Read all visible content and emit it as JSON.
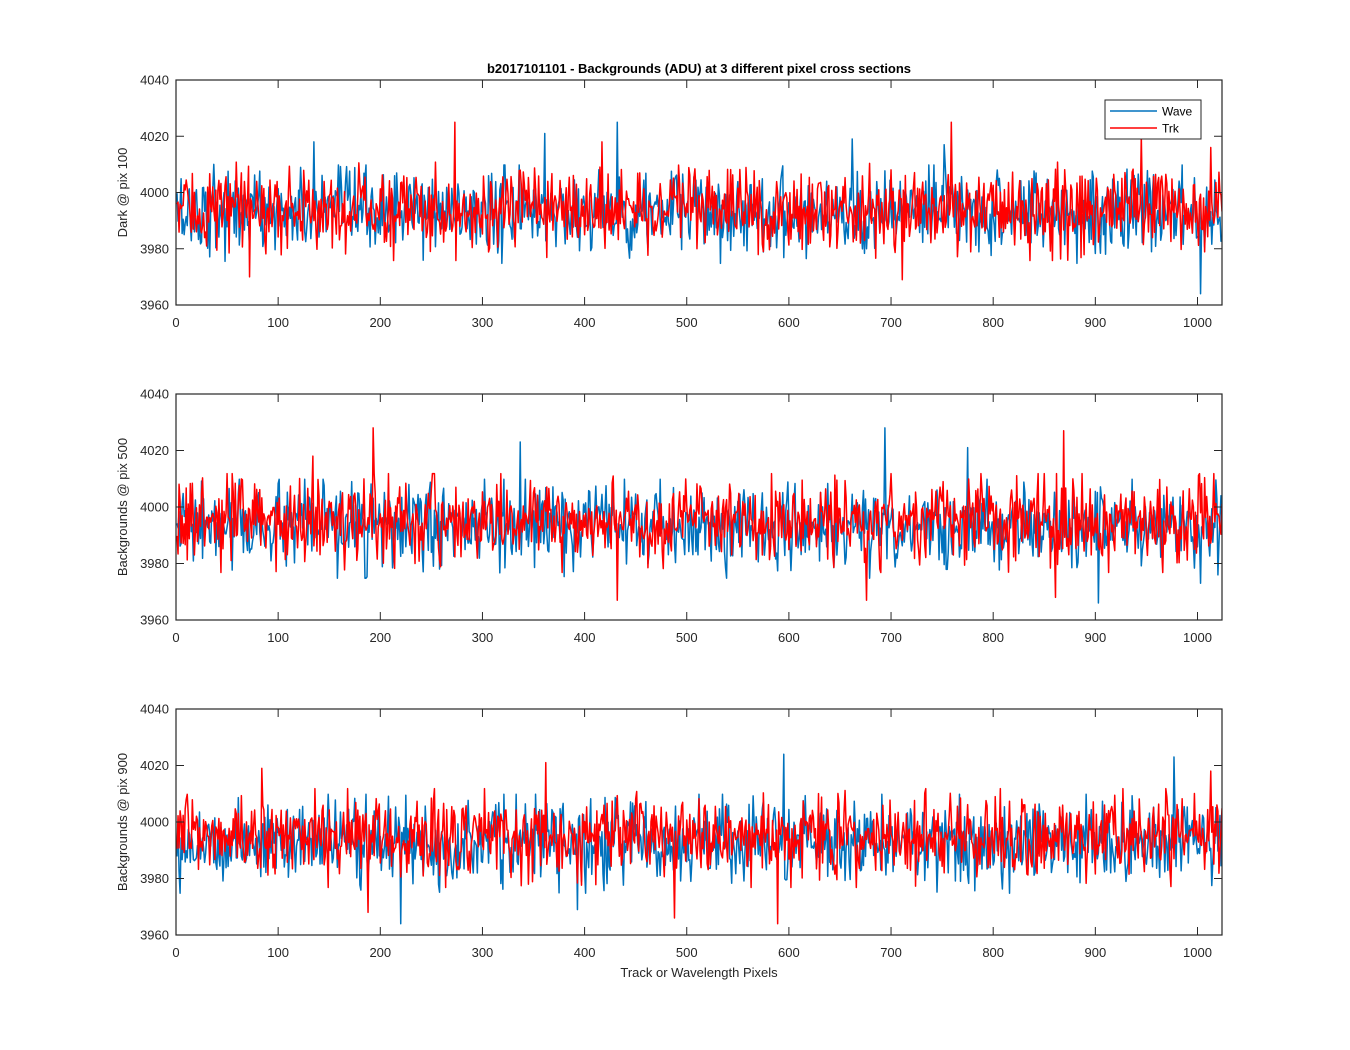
{
  "figure": {
    "title": "b2017101101 - Backgrounds (ADU) at 3 different pixel cross sections",
    "xlabel": "Track or Wavelength Pixels"
  },
  "colors": {
    "wave": "#0072BD",
    "trk": "#FF0000",
    "axes": "#262626",
    "background": "#FFFFFF"
  },
  "chart_data": [
    {
      "type": "line",
      "title": "b2017101101 - Backgrounds (ADU) at 3 different pixel cross sections",
      "xlabel": "",
      "ylabel": "Dark @ pix 100",
      "xlim": [
        0,
        1024
      ],
      "ylim": [
        3960,
        4040
      ],
      "xticks": [
        0,
        100,
        200,
        300,
        400,
        500,
        600,
        700,
        800,
        900,
        1000
      ],
      "yticks": [
        3960,
        3980,
        4000,
        4020,
        4040
      ],
      "grid": false,
      "legend": {
        "placement": "top-right",
        "entries": [
          "Wave",
          "Trk"
        ]
      },
      "series": [
        {
          "name": "Wave",
          "color": "#0072BD",
          "x_start": 1,
          "x_end": 1024,
          "baseline": 3993,
          "noise_std": 7,
          "peaks": [
            [
              37,
              4010
            ],
            [
              135,
              4018
            ],
            [
              361,
              4021
            ],
            [
              432,
              4025
            ],
            [
              662,
              4019
            ],
            [
              752,
              4017
            ],
            [
              1003,
              3964
            ]
          ]
        },
        {
          "name": "Trk",
          "color": "#FF0000",
          "x_start": 1,
          "x_end": 1024,
          "baseline": 3994,
          "noise_std": 7,
          "peaks": [
            [
              72,
              3970
            ],
            [
              273,
              4025
            ],
            [
              417,
              4018
            ],
            [
              711,
              3969
            ],
            [
              759,
              4025
            ],
            [
              945,
              4020
            ],
            [
              1013,
              4016
            ]
          ]
        }
      ]
    },
    {
      "type": "line",
      "title": "",
      "xlabel": "",
      "ylabel": "Backgrounds @ pix 500",
      "xlim": [
        0,
        1024
      ],
      "ylim": [
        3960,
        4040
      ],
      "xticks": [
        0,
        100,
        200,
        300,
        400,
        500,
        600,
        700,
        800,
        900,
        1000
      ],
      "yticks": [
        3960,
        3980,
        4000,
        4020,
        4040
      ],
      "grid": false,
      "series": [
        {
          "name": "Wave",
          "color": "#0072BD",
          "x_start": 1,
          "x_end": 1024,
          "baseline": 3993,
          "noise_std": 7,
          "peaks": [
            [
              337,
              4023
            ],
            [
              694,
              4028
            ],
            [
              775,
              4021
            ],
            [
              903,
              3966
            ],
            [
              1003,
              3973
            ]
          ]
        },
        {
          "name": "Trk",
          "color": "#FF0000",
          "x_start": 1,
          "x_end": 1024,
          "baseline": 3995,
          "noise_std": 7,
          "peaks": [
            [
              193,
              4028
            ],
            [
              134,
              4018
            ],
            [
              432,
              3967
            ],
            [
              676,
              3967
            ],
            [
              869,
              4027
            ],
            [
              861,
              3968
            ]
          ]
        }
      ]
    },
    {
      "type": "line",
      "title": "",
      "xlabel": "Track or Wavelength Pixels",
      "ylabel": "Backgrounds @ pix 900",
      "xlim": [
        0,
        1024
      ],
      "ylim": [
        3960,
        4040
      ],
      "xticks": [
        0,
        100,
        200,
        300,
        400,
        500,
        600,
        700,
        800,
        900,
        1000
      ],
      "yticks": [
        3960,
        3980,
        4000,
        4020,
        4040
      ],
      "grid": false,
      "series": [
        {
          "name": "Wave",
          "color": "#0072BD",
          "x_start": 1,
          "x_end": 1024,
          "baseline": 3993,
          "noise_std": 7,
          "peaks": [
            [
              220,
              3964
            ],
            [
              595,
              4024
            ],
            [
              977,
              4023
            ],
            [
              393,
              3969
            ]
          ]
        },
        {
          "name": "Trk",
          "color": "#FF0000",
          "x_start": 1,
          "x_end": 1024,
          "baseline": 3995,
          "noise_std": 7,
          "peaks": [
            [
              362,
              4021
            ],
            [
              589,
              3964
            ],
            [
              488,
              3966
            ],
            [
              84,
              4019
            ],
            [
              188,
              3968
            ],
            [
              1013,
              4018
            ]
          ]
        }
      ]
    }
  ]
}
